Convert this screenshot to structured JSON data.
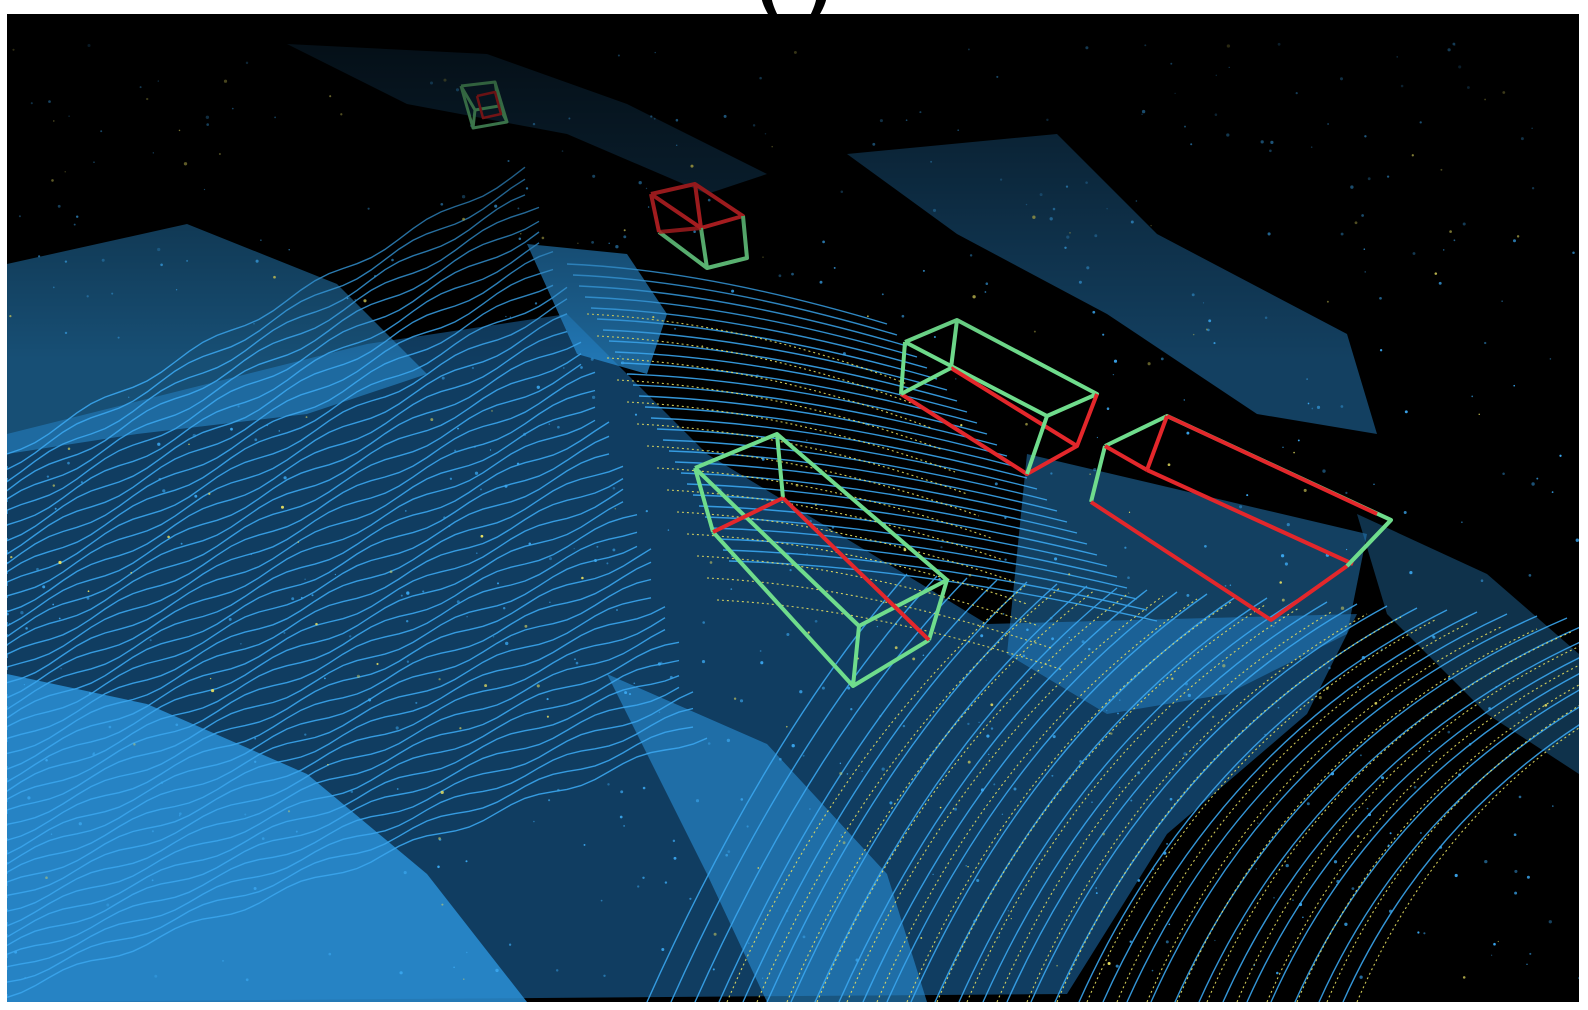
{
  "header": {
    "title_fragment": "(            )"
  },
  "viewer": {
    "name": "lidar-point-cloud-view",
    "background_color": "#000000",
    "point_color": "#2a8fd6",
    "point_color_bright": "#3aa6ee",
    "scanline_color": "#e8e060",
    "ground_truth_color": "#6fdc8c",
    "prediction_color": "#e3272b"
  },
  "detections": [
    {
      "id": "car-far",
      "kind": "3d-bounding-box"
    },
    {
      "id": "car-mid",
      "kind": "3d-bounding-box"
    },
    {
      "id": "car-right-upper",
      "kind": "3d-bounding-box"
    },
    {
      "id": "car-left-lower",
      "kind": "3d-bounding-box"
    },
    {
      "id": "car-right-lower",
      "kind": "3d-bounding-box"
    }
  ]
}
